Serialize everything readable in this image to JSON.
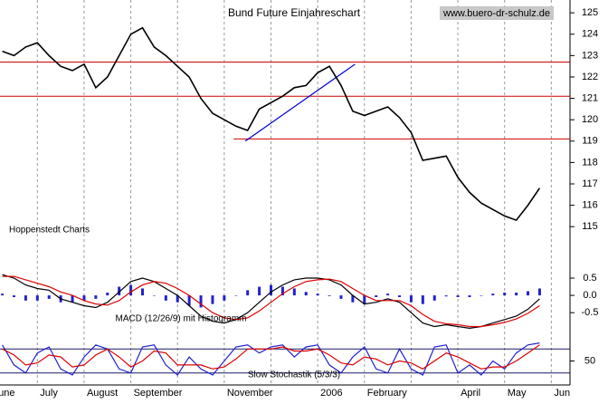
{
  "chart_data": [
    {
      "type": "line",
      "title": "Bund Future Einjahreschart",
      "source": "www.buero-dr-schulz.de",
      "annotation": "Hoppenstedt Charts",
      "x": [
        0.25,
        0.5,
        0.75,
        1,
        1.25,
        1.5,
        1.75,
        2,
        2.25,
        2.5,
        2.75,
        3,
        3.25,
        3.5,
        3.75,
        4,
        4.25,
        4.5,
        4.75,
        5,
        5.25,
        5.5,
        5.75,
        6,
        6.25,
        6.5,
        6.75,
        7,
        7.25,
        7.5,
        7.75,
        8,
        8.25,
        8.5,
        8.75,
        9,
        9.25,
        9.5,
        9.75,
        10,
        10.25,
        10.5,
        10.75,
        11,
        11.25,
        11.5,
        11.75
      ],
      "values": [
        123.2,
        123.0,
        123.4,
        123.6,
        123.0,
        122.5,
        122.3,
        122.6,
        121.5,
        122.0,
        123.0,
        124.0,
        124.3,
        123.4,
        123.0,
        122.5,
        122.0,
        121.0,
        120.3,
        120.0,
        119.7,
        119.5,
        120.5,
        120.8,
        121.1,
        121.5,
        121.6,
        122.2,
        122.5,
        121.6,
        120.4,
        120.2,
        120.4,
        120.6,
        120.1,
        119.4,
        118.1,
        118.2,
        118.3,
        117.3,
        116.6,
        116.1,
        115.8,
        115.5,
        115.3,
        116.0,
        116.8
      ],
      "color": "#000000",
      "xlim": [
        0.2,
        12.4
      ],
      "xticks": [
        {
          "value": 0,
          "label": "June"
        },
        {
          "value": 1,
          "label": "July"
        },
        {
          "value": 2,
          "label": "August"
        },
        {
          "value": 3,
          "label": "September"
        },
        {
          "value": 5,
          "label": "November"
        },
        {
          "value": 7,
          "label": "2006"
        },
        {
          "value": 8,
          "label": "February"
        },
        {
          "value": 10,
          "label": "April"
        },
        {
          "value": 11,
          "label": "May"
        },
        {
          "value": 12,
          "label": "Jun"
        }
      ],
      "minor_xticks": [
        4,
        6,
        9
      ],
      "ylim": [
        114.5,
        125.6
      ],
      "yticks": [
        115,
        116,
        117,
        118,
        119,
        120,
        121,
        122,
        123,
        124,
        125
      ],
      "reference_lines": [
        {
          "y": 122.7,
          "x_start": 0.2
        },
        {
          "y": 121.1,
          "x_start": 0.2
        },
        {
          "y": 119.1,
          "x_start": 5.2
        }
      ],
      "reference_color": "#d00000",
      "trendline": {
        "x": [
          5.45,
          7.8
        ],
        "y": [
          119.0,
          122.6
        ],
        "color": "#0000cc"
      }
    },
    {
      "type": "macd",
      "title": "MACD (12/26/9) mit Histogramm",
      "x": [
        0.25,
        0.5,
        0.75,
        1,
        1.25,
        1.5,
        1.75,
        2,
        2.25,
        2.5,
        2.75,
        3,
        3.25,
        3.5,
        3.75,
        4,
        4.25,
        4.5,
        4.75,
        5,
        5.25,
        5.5,
        5.75,
        6,
        6.25,
        6.5,
        6.75,
        7,
        7.25,
        7.5,
        7.75,
        8,
        8.25,
        8.5,
        8.75,
        9,
        9.25,
        9.5,
        9.75,
        10,
        10.25,
        10.5,
        10.75,
        11,
        11.25,
        11.5,
        11.75
      ],
      "histogram": {
        "color": "#2222cc",
        "values": [
          0.05,
          -0.05,
          -0.15,
          -0.15,
          -0.1,
          -0.2,
          -0.2,
          -0.15,
          -0.1,
          0.08,
          0.25,
          0.3,
          0.2,
          0.0,
          -0.15,
          -0.2,
          -0.3,
          -0.35,
          -0.25,
          -0.15,
          0.0,
          0.15,
          0.25,
          0.3,
          0.25,
          0.2,
          0.1,
          0.05,
          -0.02,
          -0.1,
          -0.2,
          -0.25,
          -0.05,
          0.05,
          -0.05,
          -0.2,
          -0.25,
          -0.15,
          -0.03,
          -0.05,
          -0.05,
          0.0,
          0.05,
          0.08,
          0.08,
          0.12,
          0.2
        ]
      },
      "series": [
        {
          "color": "#000000",
          "values": [
            0.6,
            0.5,
            0.3,
            0.2,
            0.15,
            -0.1,
            -0.2,
            -0.3,
            -0.35,
            -0.2,
            0.1,
            0.4,
            0.5,
            0.4,
            0.2,
            0.0,
            -0.3,
            -0.6,
            -0.75,
            -0.8,
            -0.7,
            -0.5,
            -0.2,
            0.1,
            0.3,
            0.45,
            0.5,
            0.5,
            0.45,
            0.3,
            0.0,
            -0.25,
            -0.2,
            -0.1,
            -0.2,
            -0.5,
            -0.8,
            -0.9,
            -0.85,
            -0.9,
            -0.95,
            -0.9,
            -0.8,
            -0.7,
            -0.6,
            -0.4,
            -0.1
          ]
        },
        {
          "color": "#dd0000",
          "values": [
            0.55,
            0.55,
            0.45,
            0.35,
            0.25,
            0.1,
            0.0,
            -0.15,
            -0.25,
            -0.28,
            -0.15,
            0.1,
            0.3,
            0.4,
            0.35,
            0.2,
            0.0,
            -0.25,
            -0.5,
            -0.65,
            -0.7,
            -0.65,
            -0.45,
            -0.2,
            0.05,
            0.25,
            0.4,
            0.45,
            0.47,
            0.4,
            0.2,
            0.0,
            -0.15,
            -0.15,
            -0.15,
            -0.3,
            -0.55,
            -0.75,
            -0.82,
            -0.85,
            -0.9,
            -0.9,
            -0.85,
            -0.78,
            -0.68,
            -0.52,
            -0.3
          ]
        }
      ],
      "xlim": [
        0.2,
        12.4
      ],
      "ylim": [
        -1.15,
        1.6
      ],
      "yticks": [
        0.5,
        {
          "value": 0,
          "label": "0.0"
        },
        -0.5
      ]
    },
    {
      "type": "stochastic",
      "title": "Slow Stochastik (5/3/3)",
      "x": [
        0.25,
        0.5,
        0.75,
        1,
        1.25,
        1.5,
        1.75,
        2,
        2.25,
        2.5,
        2.75,
        3,
        3.25,
        3.5,
        3.75,
        4,
        4.25,
        4.5,
        4.75,
        5,
        5.25,
        5.5,
        5.75,
        6,
        6.25,
        6.5,
        6.75,
        7,
        7.25,
        7.5,
        7.75,
        8,
        8.25,
        8.5,
        8.75,
        9,
        9.25,
        9.5,
        9.75,
        10,
        10.25,
        10.5,
        10.75,
        11,
        11.25,
        11.5,
        11.75
      ],
      "series": [
        {
          "color": "#2222cc",
          "values": [
            90,
            40,
            20,
            70,
            85,
            30,
            15,
            60,
            90,
            80,
            30,
            20,
            85,
            90,
            40,
            15,
            60,
            30,
            15,
            50,
            85,
            90,
            70,
            85,
            90,
            60,
            85,
            90,
            40,
            20,
            60,
            85,
            30,
            20,
            80,
            30,
            15,
            85,
            90,
            20,
            40,
            15,
            50,
            30,
            70,
            90,
            95
          ]
        },
        {
          "color": "#dd0000",
          "values": [
            80,
            65,
            40,
            45,
            65,
            60,
            35,
            40,
            65,
            80,
            60,
            35,
            50,
            75,
            70,
            40,
            40,
            40,
            30,
            35,
            55,
            80,
            80,
            80,
            85,
            75,
            75,
            80,
            65,
            45,
            40,
            60,
            55,
            40,
            50,
            45,
            30,
            50,
            70,
            60,
            45,
            30,
            35,
            35,
            50,
            70,
            90
          ]
        }
      ],
      "reference_lines": [
        80,
        20
      ],
      "reference_color": "#1a1a66",
      "xlim": [
        0.2,
        12.4
      ],
      "ylim": [
        -10,
        110
      ],
      "yticks": [
        50
      ]
    }
  ]
}
